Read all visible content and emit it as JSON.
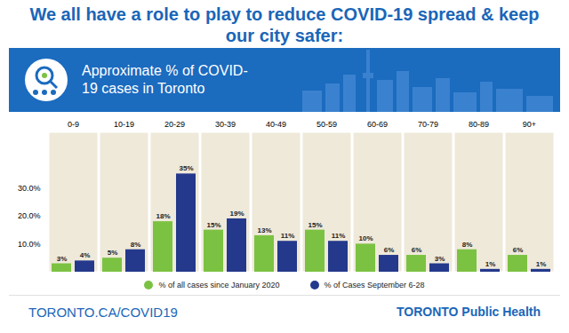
{
  "chart_data": {
    "type": "bar",
    "title": "We all have a role to play to reduce COVID-19 spread & keep our city safer:",
    "subtitle": "Approximate % of COVID-19 cases in Toronto",
    "categories": [
      "0-9",
      "10-19",
      "20-29",
      "30-39",
      "40-49",
      "50-59",
      "60-69",
      "70-79",
      "80-89",
      "90+"
    ],
    "series": [
      {
        "name": "% of all cases since January 2020",
        "color": "#7cc242",
        "values": [
          3,
          5,
          18,
          15,
          13,
          15,
          10,
          6,
          8,
          6
        ],
        "value_labels": [
          "3%",
          "5%",
          "18%",
          "15%",
          "13%",
          "15%",
          "10%",
          "6%",
          "8%",
          "6%"
        ]
      },
      {
        "name": "% of Cases September 6-28",
        "color": "#24398c",
        "values": [
          4,
          8,
          35,
          19,
          11,
          11,
          6,
          3,
          1,
          1
        ],
        "value_labels": [
          "4%",
          "8%",
          "35%",
          "19%",
          "11%",
          "11%",
          "6%",
          "3%",
          "1%",
          "1%"
        ]
      }
    ],
    "ylim": [
      0,
      50
    ],
    "yticks": [
      {
        "value": 10,
        "label": "10.0%"
      },
      {
        "value": 20,
        "label": "20.0%"
      },
      {
        "value": 30,
        "label": "30.0%"
      }
    ],
    "grid": false,
    "data_labels": true,
    "legend": "bottom",
    "annotations": [
      "TORONTO.CA/COVID19",
      "TORONTO Public Health"
    ]
  }
}
